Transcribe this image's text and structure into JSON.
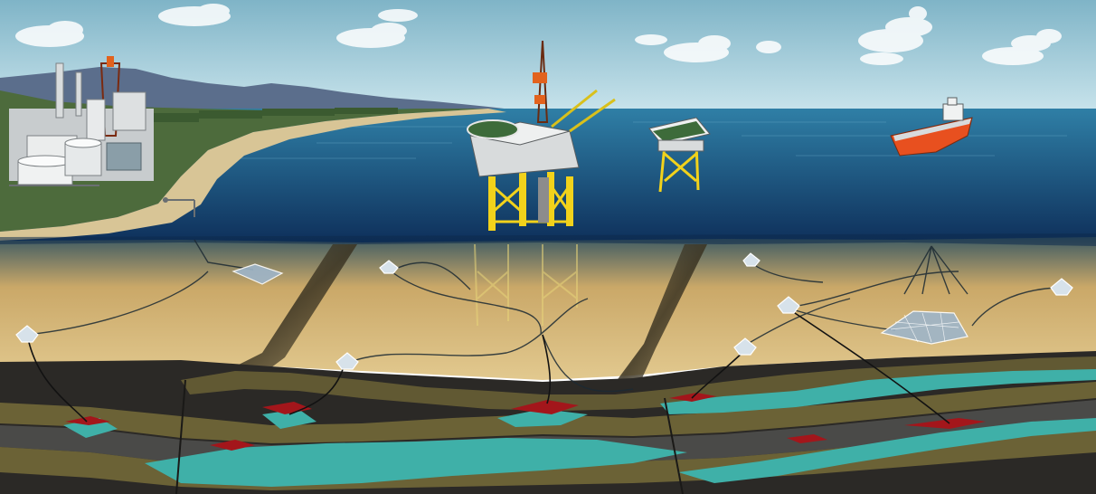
{
  "scene": {
    "type": "illustration",
    "elements": [
      "onshore-processing-plant",
      "coastline",
      "offshore-production-platform",
      "offshore-wellhead-platform",
      "shuttle-tanker",
      "subsea-templates",
      "subsea-wellheads",
      "flowlines",
      "seabed-trenches",
      "geological-strata",
      "oil-reservoirs",
      "gas-reservoirs"
    ]
  },
  "colors": {
    "sky_top": "#7fb4c7",
    "sky_bottom": "#c9e4ec",
    "sea_surface": "#2f7fa6",
    "sea_deep": "#0e2f5a",
    "seabed": "#caa868",
    "seabed_light": "#e2c98f",
    "rock_dark": "#2b2926",
    "rock_olive": "#6b6236",
    "rock_gray": "#4a4a48",
    "reservoir_water": "#3fb0a8",
    "reservoir_oil": "#a3161b",
    "platform_yellow": "#f2d21b",
    "tanker_hull": "#e8501f",
    "land_green": "#4d6b3c",
    "beach": "#d8c596",
    "mountain": "#5b6e8c"
  }
}
